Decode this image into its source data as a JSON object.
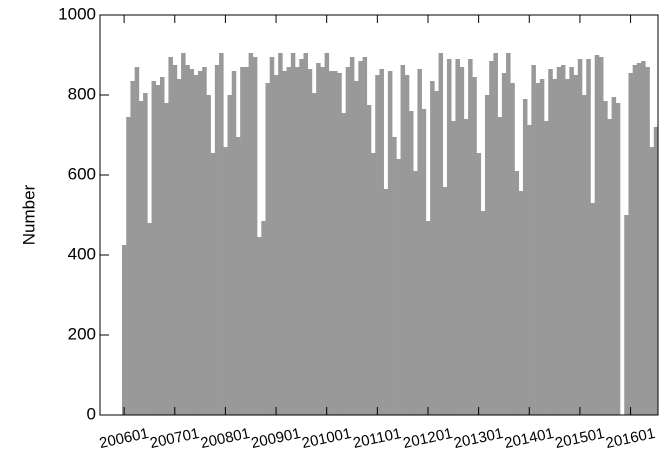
{
  "chart_data": {
    "type": "bar",
    "y_label": "Number",
    "color": "#999999",
    "ylim": [
      0,
      1000
    ],
    "yticks": [
      0,
      200,
      400,
      600,
      800,
      1000
    ],
    "categories": [
      "200601",
      null,
      null,
      null,
      null,
      null,
      null,
      null,
      null,
      null,
      null,
      null,
      "200701",
      null,
      null,
      null,
      null,
      null,
      null,
      null,
      null,
      null,
      null,
      null,
      "200801",
      null,
      null,
      null,
      null,
      null,
      null,
      null,
      null,
      null,
      null,
      null,
      "200901",
      null,
      null,
      null,
      null,
      null,
      null,
      null,
      null,
      null,
      null,
      null,
      "201001",
      null,
      null,
      null,
      null,
      null,
      null,
      null,
      null,
      null,
      null,
      null,
      "201101",
      null,
      null,
      null,
      null,
      null,
      null,
      null,
      null,
      null,
      null,
      null,
      "201201",
      null,
      null,
      null,
      null,
      null,
      null,
      null,
      null,
      null,
      null,
      null,
      "201301",
      null,
      null,
      null,
      null,
      null,
      null,
      null,
      null,
      null,
      null,
      null,
      "201401",
      null,
      null,
      null,
      null,
      null,
      null,
      null,
      null,
      null,
      null,
      null,
      "201501",
      null,
      null,
      null,
      null,
      null,
      null,
      null,
      null,
      null,
      null,
      null,
      "201601",
      null,
      null,
      null,
      null,
      null,
      null
    ],
    "values": [
      425,
      745,
      835,
      870,
      785,
      805,
      480,
      835,
      825,
      845,
      780,
      895,
      875,
      840,
      905,
      875,
      865,
      850,
      860,
      870,
      800,
      655,
      875,
      905,
      670,
      800,
      860,
      695,
      870,
      870,
      905,
      895,
      445,
      485,
      830,
      895,
      850,
      905,
      860,
      870,
      905,
      870,
      890,
      905,
      865,
      805,
      880,
      870,
      905,
      860,
      860,
      855,
      755,
      870,
      895,
      835,
      885,
      895,
      775,
      655,
      850,
      865,
      565,
      860,
      695,
      640,
      875,
      850,
      760,
      610,
      865,
      765,
      485,
      835,
      810,
      905,
      570,
      890,
      735,
      890,
      870,
      740,
      890,
      845,
      655,
      510,
      800,
      885,
      905,
      745,
      855,
      905,
      830,
      610,
      560,
      790,
      725,
      875,
      830,
      840,
      735,
      865,
      840,
      870,
      875,
      840,
      870,
      850,
      890,
      800,
      890,
      530,
      900,
      895,
      785,
      740,
      795,
      780,
      0,
      500,
      855,
      875,
      880,
      885,
      870,
      670,
      720
    ]
  }
}
